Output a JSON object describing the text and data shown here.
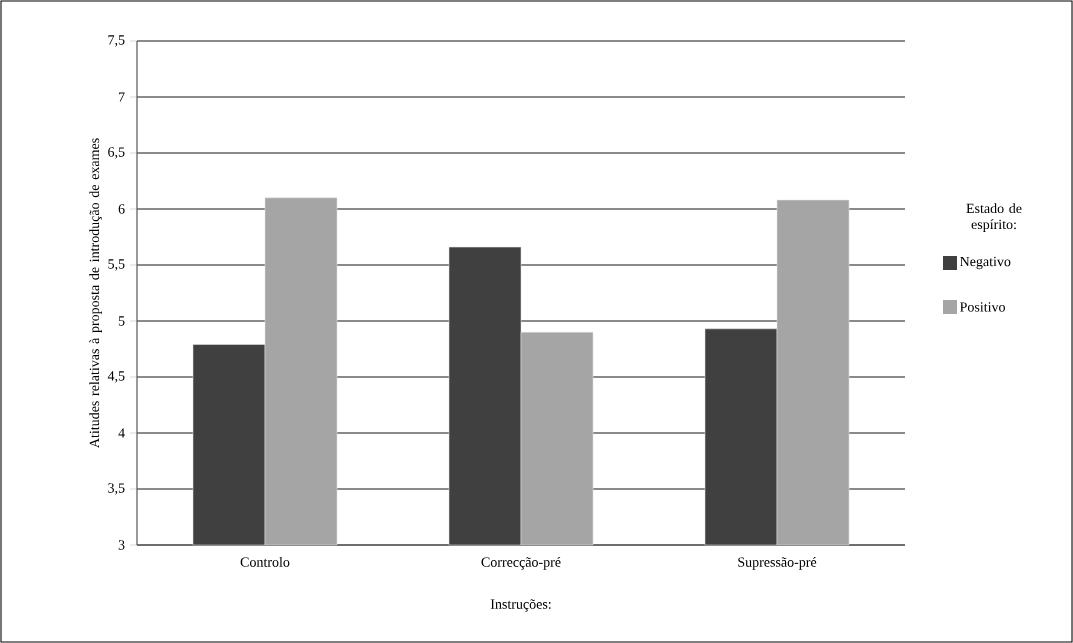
{
  "chart_data": {
    "type": "bar",
    "xlabel": "Instruções:",
    "ylabel": "Atitudes relativas à proposta de introdução de exames",
    "legend_title": "Estado de espírito:",
    "categories": [
      "Controlo",
      "Correcção-pré",
      "Supressão-pré"
    ],
    "series": [
      {
        "name": "Negativo",
        "color": "#404040",
        "values": [
          4.79,
          5.66,
          4.93
        ]
      },
      {
        "name": "Positivo",
        "color": "#a5a5a5",
        "values": [
          6.1,
          4.9,
          6.08
        ]
      }
    ],
    "ylim": [
      3,
      7.5
    ],
    "yticks": [
      {
        "value": 3,
        "label": "3"
      },
      {
        "value": 3.5,
        "label": "3,5"
      },
      {
        "value": 4,
        "label": "4"
      },
      {
        "value": 4.5,
        "label": "4,5"
      },
      {
        "value": 5,
        "label": "5"
      },
      {
        "value": 5.5,
        "label": "5,5"
      },
      {
        "value": 6,
        "label": "6"
      },
      {
        "value": 6.5,
        "label": "6,5"
      },
      {
        "value": 7,
        "label": "7"
      },
      {
        "value": 7.5,
        "label": "7,5"
      }
    ],
    "grid": "y",
    "legend": "right"
  }
}
